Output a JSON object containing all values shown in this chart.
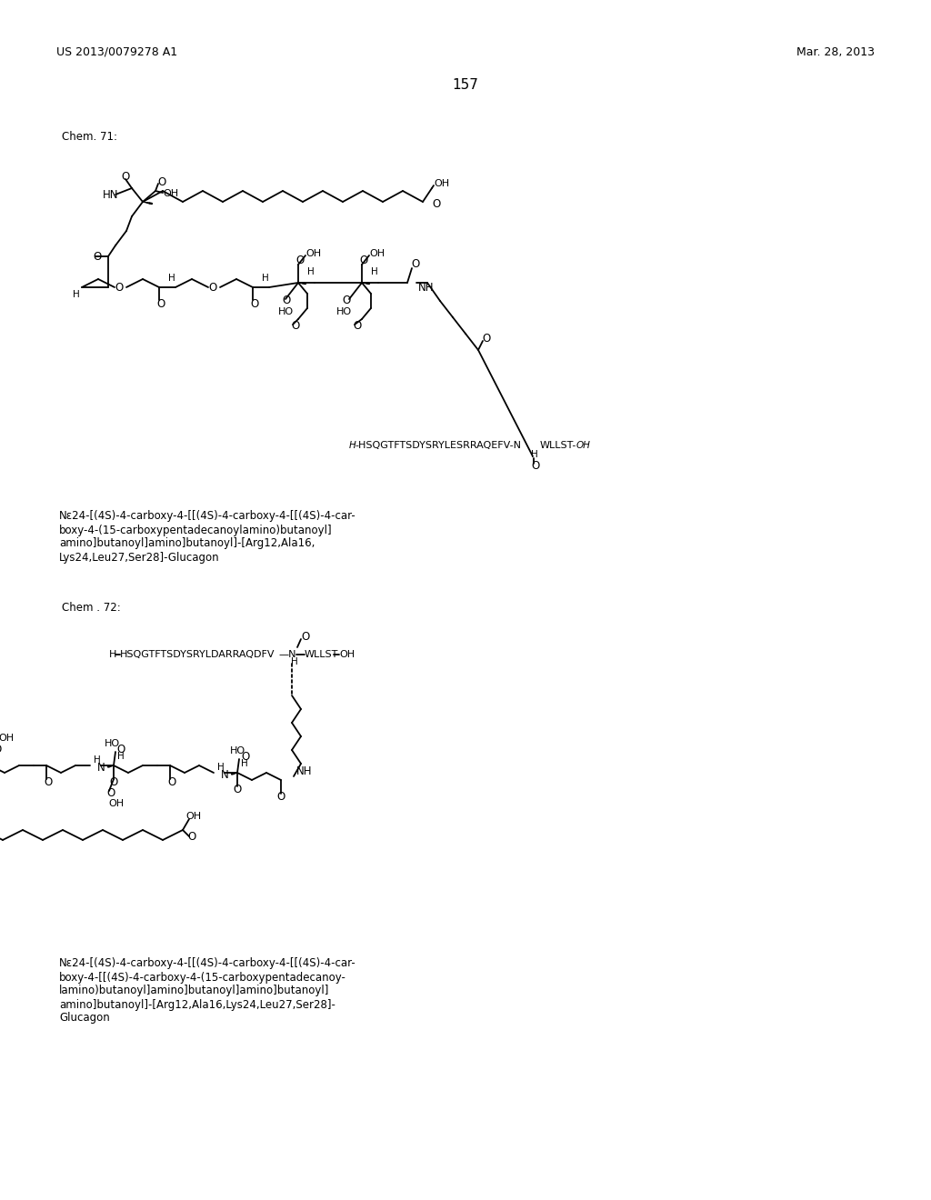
{
  "bg": "#ffffff",
  "header_left": "US 2013/0079278 A1",
  "header_right": "Mar. 28, 2013",
  "page_num": "157",
  "chem71_label": "Chem. 71:",
  "chem72_label": "Chem . 72:",
  "c1_line1": "Nε24-[(4S)-4-carboxy-4-[[(4S)-4-carboxy-4-[[(4S)-4-car-",
  "c1_line2": "boxy-4-(15-carboxypentadecanoylamino)butanoyl]",
  "c1_line3": "amino]butanoyl]amino]butanoyl]-[Arg12,Ala16,",
  "c1_line4": "Lys24,Leu27,Ser28]-Glucagon",
  "c2_line1": "Nε24-[(4S)-4-carboxy-4-[[(4S)-4-carboxy-4-[[(4S)-4-car-",
  "c2_line2": "boxy-4-[[(4S)-4-carboxy-4-(15-carboxypentadecanoy-",
  "c2_line3": "lamino)butanoyl]amino]butanoyl]amino]butanoyl]",
  "c2_line4": "amino]butanoyl]-[Arg12,Ala16,Lys24,Leu27,Ser28]-",
  "c2_line5": "Glucagon"
}
